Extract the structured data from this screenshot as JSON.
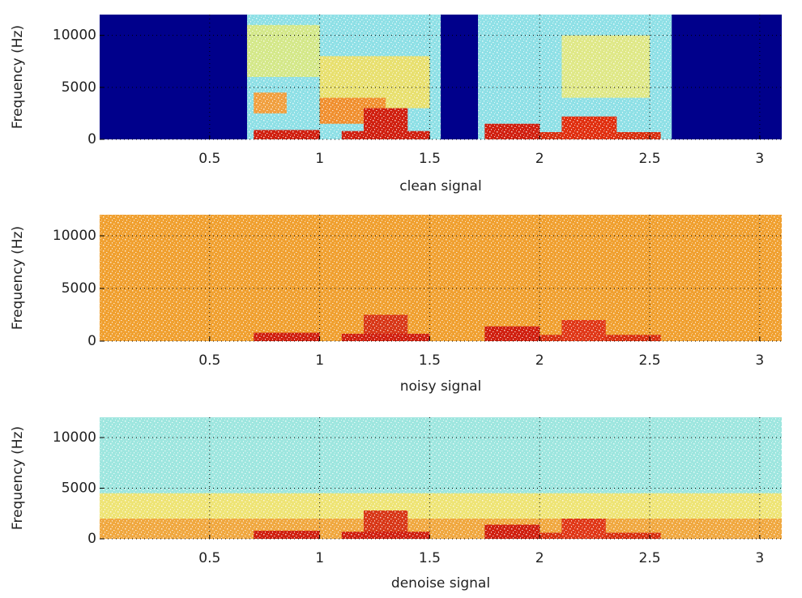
{
  "chart_data": [
    {
      "type": "spectrogram",
      "xlabel": "clean signal",
      "ylabel": "Frequency (Hz)",
      "xlim": [
        0,
        3.1
      ],
      "ylim": [
        0,
        12000
      ],
      "xticks": [
        0.5,
        1,
        1.5,
        2,
        2.5,
        3
      ],
      "yticks": [
        0,
        5000,
        10000
      ],
      "grid": true,
      "regions": [
        {
          "x": [
            0,
            0.67
          ],
          "y": [
            0,
            12000
          ],
          "color": "#00008b"
        },
        {
          "x": [
            0.67,
            1.55
          ],
          "y": [
            0,
            12000
          ],
          "color": "#8fe0e6"
        },
        {
          "x": [
            1.55,
            1.72
          ],
          "y": [
            0,
            12000
          ],
          "color": "#00008b"
        },
        {
          "x": [
            1.72,
            2.6
          ],
          "y": [
            0,
            12000
          ],
          "color": "#8fe0e6"
        },
        {
          "x": [
            2.6,
            3.1
          ],
          "y": [
            0,
            12000
          ],
          "color": "#00008b"
        },
        {
          "x": [
            0.67,
            1.0
          ],
          "y": [
            6000,
            11000
          ],
          "color": "#d4e88a"
        },
        {
          "x": [
            1.0,
            1.5
          ],
          "y": [
            3000,
            8000
          ],
          "color": "#e8e070"
        },
        {
          "x": [
            2.1,
            2.5
          ],
          "y": [
            4000,
            10000
          ],
          "color": "#dfe888"
        },
        {
          "x": [
            0.7,
            0.85
          ],
          "y": [
            2500,
            4500
          ],
          "color": "#f0a040"
        },
        {
          "x": [
            1.0,
            1.3
          ],
          "y": [
            1500,
            4000
          ],
          "color": "#f09030"
        },
        {
          "x": [
            0.7,
            1.0
          ],
          "y": [
            0,
            900
          ],
          "color": "#d02010"
        },
        {
          "x": [
            1.1,
            1.5
          ],
          "y": [
            0,
            800
          ],
          "color": "#d02010"
        },
        {
          "x": [
            1.2,
            1.4
          ],
          "y": [
            0,
            3000
          ],
          "color": "#d02010"
        },
        {
          "x": [
            1.75,
            2.0
          ],
          "y": [
            0,
            1500
          ],
          "color": "#d02010"
        },
        {
          "x": [
            2.0,
            2.55
          ],
          "y": [
            0,
            700
          ],
          "color": "#d83010"
        },
        {
          "x": [
            2.1,
            2.35
          ],
          "y": [
            0,
            2200
          ],
          "color": "#e03010"
        }
      ]
    },
    {
      "type": "spectrogram",
      "xlabel": "noisy signal",
      "ylabel": "Frequency (Hz)",
      "xlim": [
        0,
        3.1
      ],
      "ylim": [
        0,
        12000
      ],
      "xticks": [
        0.5,
        1,
        1.5,
        2,
        2.5,
        3
      ],
      "yticks": [
        0,
        5000,
        10000
      ],
      "grid": true,
      "regions": [
        {
          "x": [
            0,
            3.1
          ],
          "y": [
            0,
            12000
          ],
          "color": "#f0a030"
        },
        {
          "x": [
            0.7,
            1.0
          ],
          "y": [
            0,
            800
          ],
          "color": "#d02010"
        },
        {
          "x": [
            1.2,
            1.4
          ],
          "y": [
            0,
            2500
          ],
          "color": "#d83818"
        },
        {
          "x": [
            1.1,
            1.5
          ],
          "y": [
            0,
            700
          ],
          "color": "#d02010"
        },
        {
          "x": [
            1.75,
            2.0
          ],
          "y": [
            0,
            1400
          ],
          "color": "#d02010"
        },
        {
          "x": [
            2.0,
            2.55
          ],
          "y": [
            0,
            600
          ],
          "color": "#d83010"
        },
        {
          "x": [
            2.1,
            2.3
          ],
          "y": [
            0,
            2000
          ],
          "color": "#e03818"
        }
      ]
    },
    {
      "type": "spectrogram",
      "xlabel": "denoise signal",
      "ylabel": "Frequency (Hz)",
      "xlim": [
        0,
        3.1
      ],
      "ylim": [
        0,
        12000
      ],
      "xticks": [
        0.5,
        1,
        1.5,
        2,
        2.5,
        3
      ],
      "yticks": [
        0,
        5000,
        10000
      ],
      "grid": true,
      "regions": [
        {
          "x": [
            0,
            3.1
          ],
          "y": [
            0,
            12000
          ],
          "color": "#9ee6df"
        },
        {
          "x": [
            0,
            3.1
          ],
          "y": [
            0,
            4500
          ],
          "color": "#eee476"
        },
        {
          "x": [
            0,
            3.1
          ],
          "y": [
            0,
            2000
          ],
          "color": "#f0a840"
        },
        {
          "x": [
            0.7,
            1.0
          ],
          "y": [
            0,
            800
          ],
          "color": "#d02010"
        },
        {
          "x": [
            1.2,
            1.4
          ],
          "y": [
            0,
            2800
          ],
          "color": "#d83818"
        },
        {
          "x": [
            1.1,
            1.5
          ],
          "y": [
            0,
            700
          ],
          "color": "#d02010"
        },
        {
          "x": [
            1.75,
            2.0
          ],
          "y": [
            0,
            1400
          ],
          "color": "#d02010"
        },
        {
          "x": [
            2.0,
            2.55
          ],
          "y": [
            0,
            600
          ],
          "color": "#d83010"
        },
        {
          "x": [
            2.1,
            2.3
          ],
          "y": [
            0,
            2000
          ],
          "color": "#e03818"
        }
      ]
    }
  ]
}
